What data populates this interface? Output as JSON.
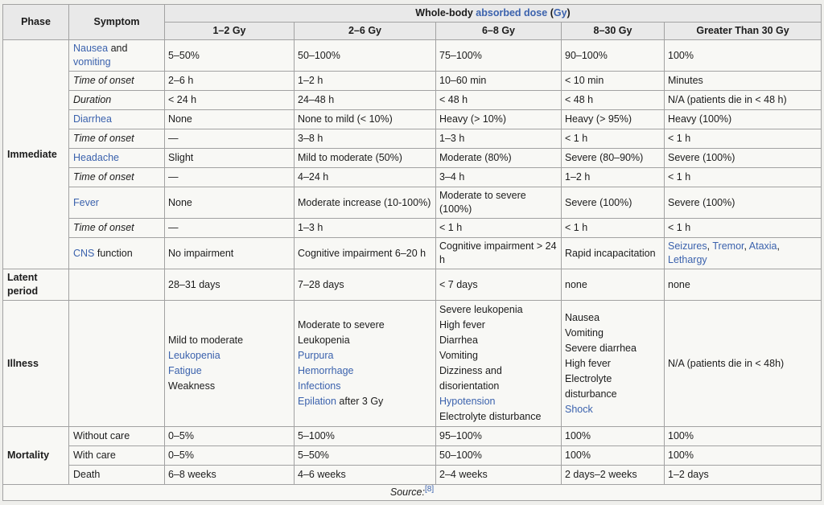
{
  "colors": {
    "border": "#a2a2a2",
    "header_bg": "#e9e9e9",
    "cell_bg": "#f8f8f5",
    "page_bg": "#efefec",
    "link": "#3b62ad",
    "text": "#1c1c1c"
  },
  "table": {
    "header": {
      "phase": "Phase",
      "symptom": "Symptom",
      "dose_title_runs": [
        {
          "t": "Whole-body "
        },
        {
          "t": "absorbed dose",
          "link": true
        },
        {
          "t": " ("
        },
        {
          "t": "Gy",
          "link": true
        },
        {
          "t": ")"
        }
      ],
      "doses": [
        "1–2 Gy",
        "2–6 Gy",
        "6–8 Gy",
        "8–30 Gy",
        "Greater Than 30 Gy"
      ]
    },
    "sections": [
      {
        "phase": "Immediate",
        "rows": [
          {
            "symptom": [
              {
                "t": "Nausea",
                "link": true
              },
              {
                "t": " and "
              },
              {
                "t": "vomiting",
                "link": true
              }
            ],
            "cells": [
              "5–50%",
              "50–100%",
              "75–100%",
              "90–100%",
              "100%"
            ]
          },
          {
            "symptom": [
              {
                "t": "Time of onset",
                "i": true
              }
            ],
            "cells": [
              "2–6 h",
              "1–2 h",
              "10–60 min",
              "< 10 min",
              "Minutes"
            ]
          },
          {
            "symptom": [
              {
                "t": "Duration",
                "i": true
              }
            ],
            "cells": [
              "< 24 h",
              "24–48 h",
              "< 48 h",
              "< 48 h",
              "N/A (patients die in < 48 h)"
            ]
          },
          {
            "symptom": [
              {
                "t": "Diarrhea",
                "link": true
              }
            ],
            "cells": [
              "None",
              "None to mild (< 10%)",
              "Heavy (> 10%)",
              "Heavy (> 95%)",
              "Heavy (100%)"
            ]
          },
          {
            "symptom": [
              {
                "t": "Time of onset",
                "i": true
              }
            ],
            "cells": [
              "—",
              "3–8 h",
              "1–3 h",
              "< 1 h",
              "< 1 h"
            ]
          },
          {
            "symptom": [
              {
                "t": "Headache",
                "link": true
              }
            ],
            "cells": [
              "Slight",
              "Mild to moderate (50%)",
              "Moderate (80%)",
              "Severe (80–90%)",
              "Severe (100%)"
            ]
          },
          {
            "symptom": [
              {
                "t": "Time of onset",
                "i": true
              }
            ],
            "cells": [
              "—",
              "4–24 h",
              "3–4 h",
              "1–2 h",
              "< 1 h"
            ]
          },
          {
            "symptom": [
              {
                "t": "Fever",
                "link": true
              }
            ],
            "cells": [
              "None",
              "Moderate increase (10-100%)",
              "Moderate to severe (100%)",
              "Severe (100%)",
              "Severe (100%)"
            ]
          },
          {
            "symptom": [
              {
                "t": "Time of onset",
                "i": true
              }
            ],
            "cells": [
              "—",
              "1–3 h",
              "< 1 h",
              "< 1 h",
              "< 1 h"
            ]
          },
          {
            "symptom": [
              {
                "t": "CNS",
                "link": true
              },
              {
                "t": " function"
              }
            ],
            "cells": [
              "No impairment",
              "Cognitive impairment 6–20 h",
              "Cognitive impairment > 24 h",
              "Rapid incapacitation",
              [
                [
                  {
                    "t": "Seizures",
                    "link": true
                  },
                  {
                    "t": ", "
                  },
                  {
                    "t": "Tremor",
                    "link": true
                  },
                  {
                    "t": ", "
                  },
                  {
                    "t": "Ataxia",
                    "link": true
                  },
                  {
                    "t": ", "
                  },
                  {
                    "t": "Lethargy",
                    "link": true
                  }
                ]
              ]
            ]
          }
        ]
      },
      {
        "phase": "Latent period",
        "rows": [
          {
            "symptom": [],
            "cells": [
              "28–31 days",
              "7–28 days",
              "< 7 days",
              "none",
              "none"
            ]
          }
        ]
      },
      {
        "phase": "Illness",
        "illness": true,
        "rows": [
          {
            "symptom": [],
            "cells": [
              [
                [
                  {
                    "t": "Mild to moderate "
                  },
                  {
                    "t": "Leukopenia",
                    "link": true
                  }
                ],
                [
                  {
                    "t": "Fatigue",
                    "link": true
                  }
                ],
                "Weakness"
              ],
              [
                "Moderate to severe Leukopenia",
                [
                  {
                    "t": "Purpura",
                    "link": true
                  }
                ],
                [
                  {
                    "t": "Hemorrhage",
                    "link": true
                  }
                ],
                [
                  {
                    "t": "Infections",
                    "link": true
                  }
                ],
                [
                  {
                    "t": "Epilation",
                    "link": true
                  },
                  {
                    "t": " after 3 Gy"
                  }
                ]
              ],
              [
                "Severe leukopenia",
                "High fever",
                "Diarrhea",
                "Vomiting",
                "Dizziness and disorientation",
                [
                  {
                    "t": "Hypotension",
                    "link": true
                  }
                ],
                "Electrolyte disturbance"
              ],
              [
                "Nausea",
                "Vomiting",
                "Severe diarrhea",
                "High fever",
                "Electrolyte disturbance",
                [
                  {
                    "t": "Shock",
                    "link": true
                  }
                ]
              ],
              "N/A (patients die in < 48h)"
            ]
          }
        ]
      },
      {
        "phase": "Mortality",
        "rows": [
          {
            "symptom": [
              {
                "t": "Without care"
              }
            ],
            "cells": [
              "0–5%",
              "5–100%",
              "95–100%",
              "100%",
              "100%"
            ]
          },
          {
            "symptom": [
              {
                "t": "With care"
              }
            ],
            "cells": [
              "0–5%",
              "5–50%",
              "50–100%",
              "100%",
              "100%"
            ]
          },
          {
            "symptom": [
              {
                "t": "Death"
              }
            ],
            "cells": [
              "6–8 weeks",
              "4–6 weeks",
              "2–4 weeks",
              "2 days–2 weeks",
              "1–2 days"
            ]
          }
        ]
      }
    ],
    "footer_runs": [
      {
        "t": "Source:",
        "i": true
      },
      {
        "t": "[8]",
        "link": true,
        "sup": true
      }
    ]
  }
}
